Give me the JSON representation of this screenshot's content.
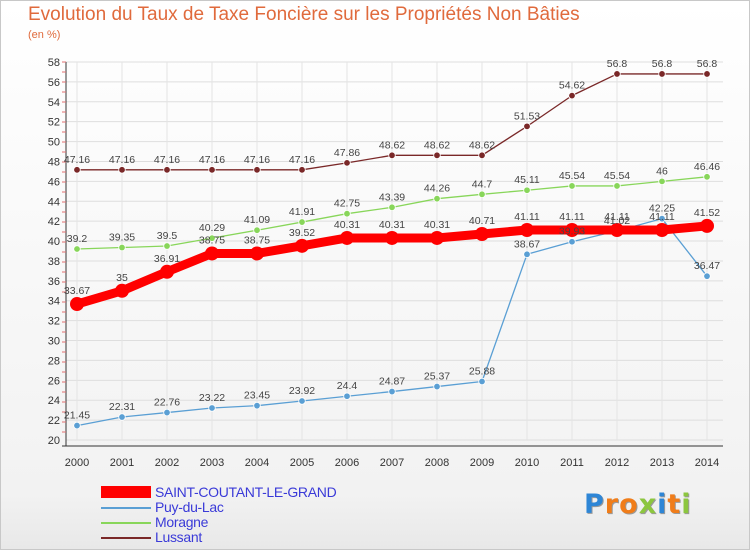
{
  "chart_data": {
    "type": "line",
    "title": "Evolution du Taux de Taxe Foncière sur les Propriétés Non Bâties",
    "ylabel": "(en %)",
    "xlabel": "",
    "x": [
      "2000",
      "2001",
      "2002",
      "2003",
      "2004",
      "2005",
      "2006",
      "2007",
      "2008",
      "2009",
      "2010",
      "2011",
      "2012",
      "2013",
      "2014"
    ],
    "ylim": [
      20,
      58
    ],
    "yticks": [
      20,
      22,
      24,
      26,
      28,
      30,
      32,
      34,
      36,
      38,
      40,
      42,
      44,
      46,
      48,
      50,
      52,
      54,
      56,
      58
    ],
    "grid": true,
    "legend_position": "bottom-left",
    "series": [
      {
        "name": "SAINT-COUTANT-LE-GRAND",
        "color": "#ff0000",
        "emphasis": true,
        "values": [
          33.67,
          35,
          36.91,
          38.75,
          38.75,
          39.52,
          40.31,
          40.31,
          40.31,
          40.71,
          41.11,
          41.11,
          41.11,
          41.11,
          41.52
        ],
        "labels": [
          "33.67",
          "35",
          "36.91",
          "38.75",
          "38.75",
          "39.52",
          "40.31",
          "40.31",
          "40.31",
          "40.71",
          "41.11",
          "41.11",
          "41.11",
          "41.11",
          "41.52"
        ]
      },
      {
        "name": "Puy-du-Lac",
        "color": "#5a9fd4",
        "emphasis": false,
        "values": [
          21.45,
          22.31,
          22.76,
          23.22,
          23.45,
          23.92,
          24.4,
          24.87,
          25.37,
          25.88,
          38.67,
          39.93,
          41.02,
          42.25,
          36.47
        ],
        "labels": [
          "21.45",
          "22.31",
          "22.76",
          "23.22",
          "23.45",
          "23.92",
          "24.4",
          "24.87",
          "25.37",
          "25.88",
          "38.67",
          "39.93",
          "41.02",
          "42.25",
          "36.47"
        ]
      },
      {
        "name": "Moragne",
        "color": "#88d65a",
        "emphasis": false,
        "values": [
          39.2,
          39.35,
          39.5,
          40.29,
          41.09,
          41.91,
          42.75,
          43.39,
          44.26,
          44.7,
          45.11,
          45.54,
          45.54,
          46,
          46.46
        ],
        "labels": [
          "39.2",
          "39.35",
          "39.5",
          "40.29",
          "41.09",
          "41.91",
          "42.75",
          "43.39",
          "44.26",
          "44.7",
          "45.11",
          "45.54",
          "45.54",
          "46",
          "46.46"
        ]
      },
      {
        "name": "Lussant",
        "color": "#7a2828",
        "emphasis": false,
        "values": [
          47.16,
          47.16,
          47.16,
          47.16,
          47.16,
          47.16,
          47.86,
          48.62,
          48.62,
          48.62,
          51.53,
          54.62,
          56.8,
          56.8,
          56.8
        ],
        "labels": [
          "47.16",
          "47.16",
          "47.16",
          "47.16",
          "47.16",
          "47.16",
          "47.86",
          "48.62",
          "48.62",
          "48.62",
          "51.53",
          "54.62",
          "56.8",
          "56.8",
          "56.8"
        ]
      }
    ]
  },
  "brand": {
    "letters": [
      "P",
      "r",
      "o",
      "x",
      "i",
      "t",
      "i"
    ],
    "colors": [
      "#2e86d6",
      "#f07d1a",
      "#f07d1a",
      "#8cc63f",
      "#2e86d6",
      "#f07d1a",
      "#8cc63f"
    ]
  }
}
